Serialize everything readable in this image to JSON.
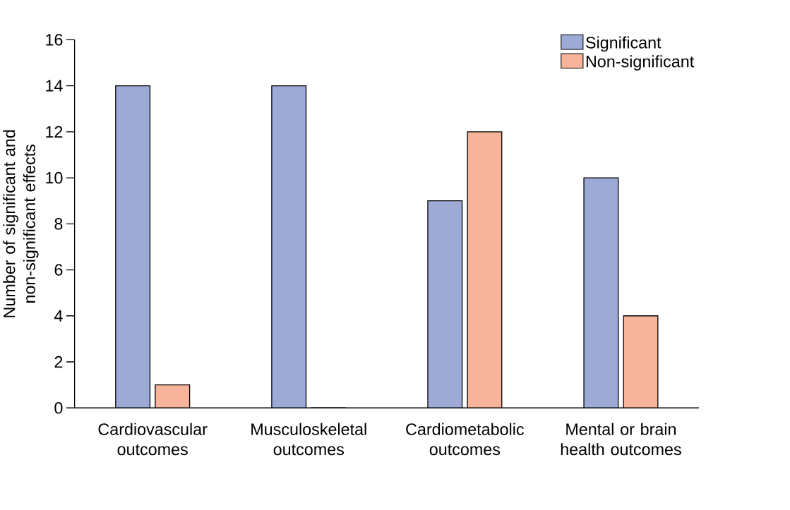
{
  "chart_data": {
    "type": "bar",
    "categories": [
      "Cardiovascular outcomes",
      "Musculoskeletal outcomes",
      "Cardiometabolic outcomes",
      "Mental or brain health outcomes"
    ],
    "series": [
      {
        "name": "Significant",
        "color": "#9daad6",
        "values": [
          14,
          14,
          9,
          10
        ]
      },
      {
        "name": "Non-significant",
        "color": "#f7b49b",
        "values": [
          1,
          0,
          12,
          4
        ]
      }
    ],
    "ylabel": "Number of significant and non-significant effects",
    "ylim": [
      0,
      16
    ],
    "yticks": [
      0,
      2,
      4,
      6,
      8,
      10,
      12,
      14,
      16
    ],
    "legend": "top right",
    "grid": false
  }
}
